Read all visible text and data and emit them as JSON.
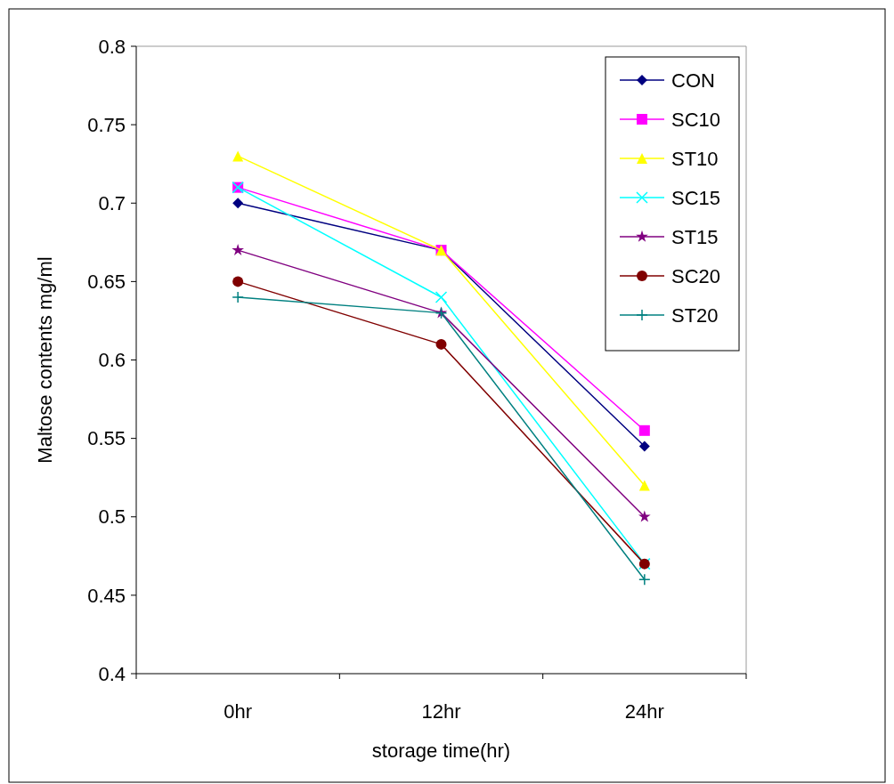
{
  "chart_data": {
    "type": "line",
    "xlabel": "storage time(hr)",
    "ylabel": "Maltose contents mg/ml",
    "categories": [
      "0hr",
      "12hr",
      "24hr"
    ],
    "ylim": [
      0.4,
      0.8
    ],
    "yticks": [
      0.4,
      0.45,
      0.5,
      0.55,
      0.6,
      0.65,
      0.7,
      0.75,
      0.8
    ],
    "grid": false,
    "legend": "top right",
    "line_style": "solid",
    "series": [
      {
        "name": "CON",
        "color": "#000080",
        "marker": "diamond",
        "values": [
          0.7,
          0.67,
          0.545
        ]
      },
      {
        "name": "SC10",
        "color": "#ff00ff",
        "marker": "square",
        "values": [
          0.71,
          0.67,
          0.555
        ]
      },
      {
        "name": "ST10",
        "color": "#ffff00",
        "marker": "triangle",
        "values": [
          0.73,
          0.67,
          0.52
        ]
      },
      {
        "name": "SC15",
        "color": "#00ffff",
        "marker": "cross",
        "values": [
          0.71,
          0.64,
          0.47
        ]
      },
      {
        "name": "ST15",
        "color": "#800080",
        "marker": "star",
        "values": [
          0.67,
          0.63,
          0.5
        ]
      },
      {
        "name": "SC20",
        "color": "#800000",
        "marker": "circle",
        "values": [
          0.65,
          0.61,
          0.47
        ]
      },
      {
        "name": "ST20",
        "color": "#008080",
        "marker": "plus",
        "values": [
          0.64,
          0.63,
          0.46
        ]
      }
    ]
  }
}
